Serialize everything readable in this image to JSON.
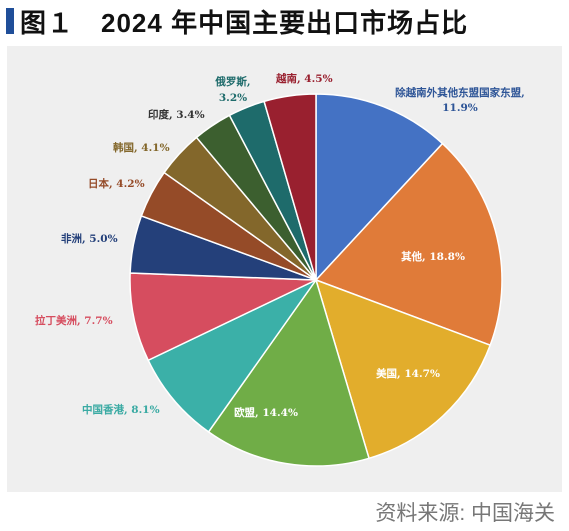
{
  "header": {
    "title": "图１　2024 年中国主要出口市场占比"
  },
  "source": "资料来源: 中国海关",
  "chart_data": {
    "type": "pie",
    "title": "图１　2024 年中国主要出口市场占比",
    "unit": "%",
    "slices": [
      {
        "name": "除越南外其他东盟国家东盟",
        "value": 11.9,
        "label": "除越南外其他东盟国家东盟,",
        "value_label": "11.9%",
        "color": "#4472c4",
        "label_color": "#2e5597"
      },
      {
        "name": "其他",
        "value": 18.8,
        "label": "其他, 18.8%",
        "color": "#e07b39",
        "label_color": "#ffffff"
      },
      {
        "name": "美国",
        "value": 14.7,
        "label": "美国, 14.7%",
        "color": "#e2ad2c",
        "label_color": "#ffffff"
      },
      {
        "name": "欧盟",
        "value": 14.4,
        "label": "欧盟, 14.4%",
        "color": "#70ad47",
        "label_color": "#ffffff"
      },
      {
        "name": "中国香港",
        "value": 8.1,
        "label": "中国香港, 8.1%",
        "color": "#3bb0a8",
        "label_color": "#3aaaa3"
      },
      {
        "name": "拉丁美洲",
        "value": 7.7,
        "label": "拉丁美洲, 7.7%",
        "color": "#d64d5f",
        "label_color": "#d64d5f"
      },
      {
        "name": "非洲",
        "value": 5.0,
        "label": "非洲, 5.0%",
        "color": "#24407a",
        "label_color": "#24407a"
      },
      {
        "name": "日本",
        "value": 4.2,
        "label": "日本, 4.2%",
        "color": "#954b28",
        "label_color": "#954b28"
      },
      {
        "name": "韩国",
        "value": 4.1,
        "label": "韩国, 4.1%",
        "color": "#83672b",
        "label_color": "#83672b"
      },
      {
        "name": "印度",
        "value": 3.4,
        "label": "印度, 3.4%",
        "color": "#3c5f2f",
        "label_color": "#333333"
      },
      {
        "name": "俄罗斯",
        "value": 3.2,
        "label": "俄罗斯,",
        "value_label": "3.2%",
        "color": "#1e6b6b",
        "label_color": "#1e6b6b"
      },
      {
        "name": "越南",
        "value": 4.5,
        "label": "越南, 4.5%",
        "color": "#99202f",
        "label_color": "#99202f"
      }
    ]
  }
}
